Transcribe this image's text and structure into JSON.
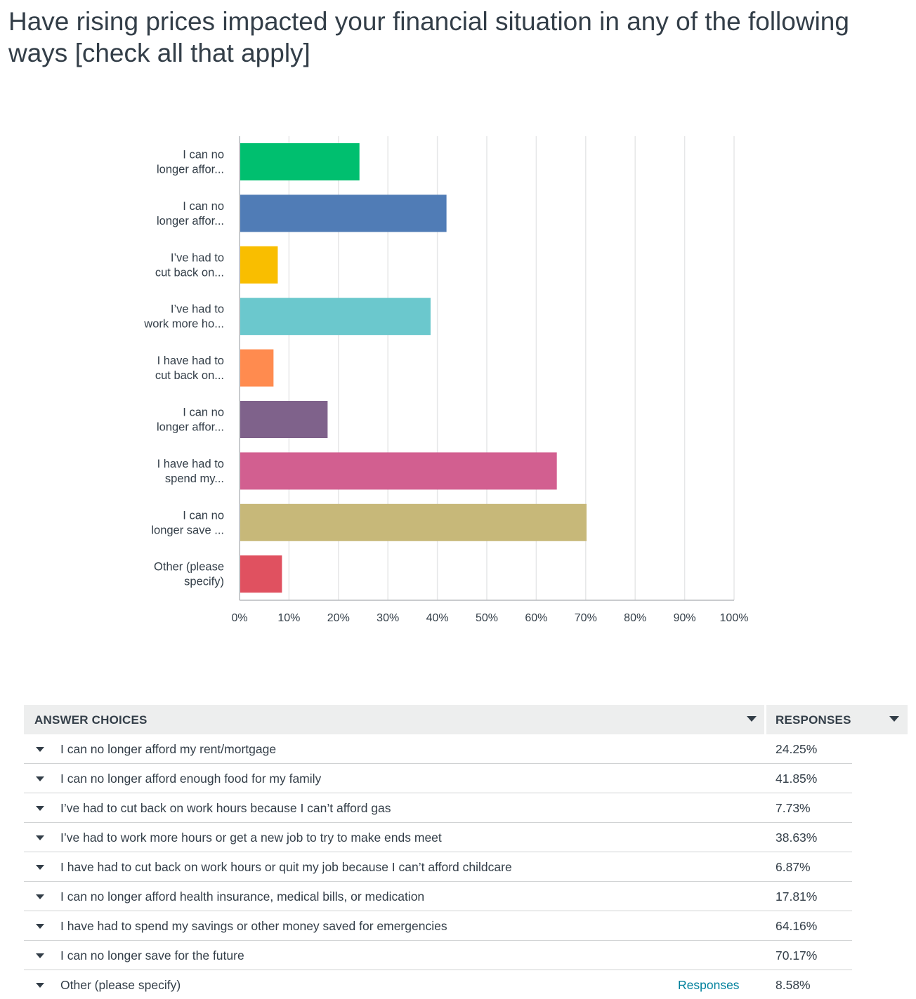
{
  "question": {
    "title": "Have rising prices impacted your financial situation in any of the following ways [check all that apply]"
  },
  "chart_data": {
    "type": "bar",
    "orientation": "horizontal",
    "title": "",
    "xlabel": "",
    "ylabel": "",
    "xlim": [
      0,
      100
    ],
    "x_ticks": [
      "0%",
      "10%",
      "20%",
      "30%",
      "40%",
      "50%",
      "60%",
      "70%",
      "80%",
      "90%",
      "100%"
    ],
    "grid": true,
    "categories": [
      [
        "I can no",
        "longer affor..."
      ],
      [
        "I can no",
        "longer affor..."
      ],
      [
        "I’ve had to",
        "cut back on..."
      ],
      [
        "I’ve had to",
        "work more ho..."
      ],
      [
        "I have had to",
        "cut back on..."
      ],
      [
        "I can no",
        "longer affor..."
      ],
      [
        "I have had to",
        "spend my..."
      ],
      [
        "I can no",
        "longer save ..."
      ],
      [
        "Other (please",
        "specify)"
      ]
    ],
    "values": [
      24.25,
      41.85,
      7.73,
      38.63,
      6.87,
      17.81,
      64.16,
      70.17,
      8.58
    ],
    "colors": [
      "#00bf6f",
      "#507cb6",
      "#f9be00",
      "#6bc8cd",
      "#ff8b4f",
      "#7f628b",
      "#d25f90",
      "#c7b879",
      "#e05160"
    ]
  },
  "table": {
    "header_choices": "ANSWER CHOICES",
    "header_responses": "RESPONSES",
    "rows": [
      {
        "label": "I can no longer afford my rent/mortgage",
        "value": "24.25%",
        "link": ""
      },
      {
        "label": "I can no longer afford enough food for my family",
        "value": "41.85%",
        "link": ""
      },
      {
        "label": "I’ve had to cut back on work hours because I can’t afford gas",
        "value": "7.73%",
        "link": ""
      },
      {
        "label": "I’ve had to work more hours or get a new job to try to make ends meet",
        "value": "38.63%",
        "link": ""
      },
      {
        "label": "I have had to cut back on work hours or quit my job because I can’t afford childcare",
        "value": "6.87%",
        "link": ""
      },
      {
        "label": "I can no longer afford health insurance, medical bills, or medication",
        "value": "17.81%",
        "link": ""
      },
      {
        "label": "I have had to spend my savings or other money saved for emergencies",
        "value": "64.16%",
        "link": ""
      },
      {
        "label": "I can no longer save for the future",
        "value": "70.17%",
        "link": ""
      },
      {
        "label": "Other (please specify)",
        "value": "8.58%",
        "link": "Responses"
      }
    ]
  }
}
